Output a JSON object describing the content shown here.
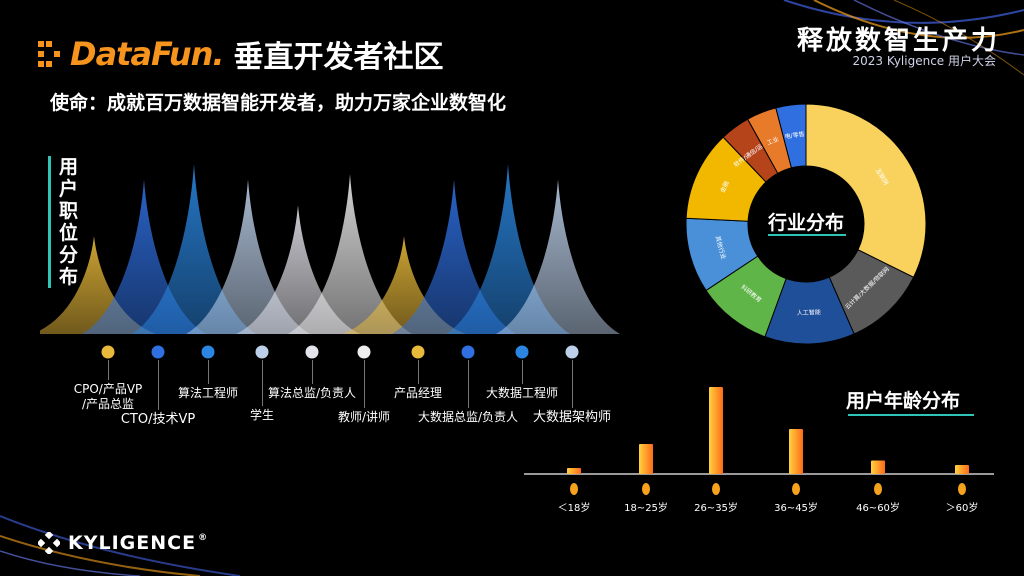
{
  "header": {
    "brand": "DataFun.",
    "community": "垂直开发者社区",
    "mission": "使命：成就百万数据智能开发者，助力万家企业数智化",
    "event_title": "释放数智生产力",
    "event_subtitle": "2023 Kyligence 用户大会"
  },
  "footer": {
    "logo_text": "KYLIGENCE",
    "registered_mark": "®"
  },
  "colors": {
    "accent": "#2ec4b6",
    "gold": "#f6a21c",
    "brand_orange": "#f7941d"
  },
  "chart_data": [
    {
      "type": "area",
      "title": "用户职位分布",
      "categories": [
        "CPO/产品VP/产品总监",
        "CTO/技术VP",
        "算法工程师",
        "学生",
        "算法总监/负责人",
        "教师/讲师",
        "产品经理",
        "大数据总监/负责人",
        "大数据工程师",
        "大数据架构师"
      ],
      "label_lines": [
        [
          "CPO/产品VP",
          "/产品总监"
        ],
        [
          "CTO/技术VP"
        ],
        [
          "算法工程师"
        ],
        [
          "学生"
        ],
        [
          "算法总监/负责人"
        ],
        [
          "教师/讲师"
        ],
        [
          "产品经理"
        ],
        [
          "大数据总监/负责人"
        ],
        [
          "大数据工程师"
        ],
        [
          "大数据架构师"
        ]
      ],
      "values": [
        95,
        150,
        165,
        150,
        125,
        155,
        95,
        150,
        165,
        150
      ],
      "colors": [
        "#e8b93a",
        "#2f6fe0",
        "#2a86e0",
        "#bcd0ea",
        "#e4e4ec",
        "#eeeeee",
        "#e8b93a",
        "#2f6fe0",
        "#2a86e0",
        "#bcd0ea"
      ]
    },
    {
      "type": "pie",
      "title": "行业分布",
      "labels": [
        "互联网",
        "云计算/大数据/物联网",
        "人工智能",
        "科研教育",
        "其他行业",
        "金融",
        "软件/通信/运营商",
        "工业",
        "电/零售"
      ],
      "values": [
        32,
        11,
        12,
        10,
        10,
        12,
        4,
        4,
        4
      ],
      "colors": [
        "#f9d25e",
        "#5a5a5a",
        "#1f4f99",
        "#5fb548",
        "#4a90d9",
        "#f2b800",
        "#b5441b",
        "#e87b2a",
        "#2f6fe0"
      ]
    },
    {
      "type": "bar",
      "title": "用户年龄分布",
      "categories": [
        "＜18岁",
        "18~25岁",
        "26~35岁",
        "36~45岁",
        "46~60岁",
        "＞60岁"
      ],
      "values": [
        4,
        20,
        58,
        30,
        9,
        6
      ],
      "ylim": [
        0,
        60
      ]
    }
  ]
}
